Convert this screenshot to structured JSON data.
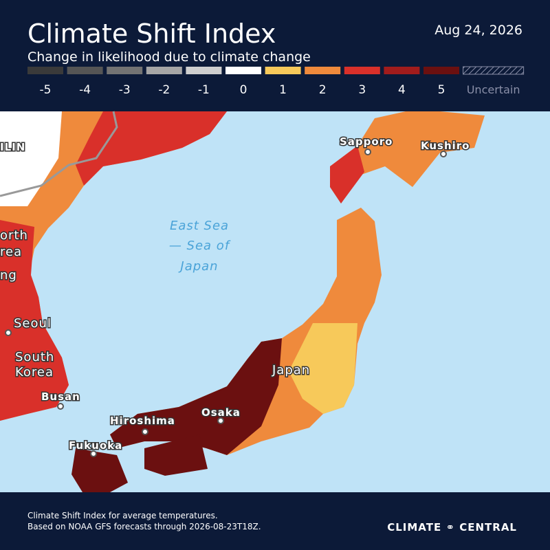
{
  "header": {
    "title": "Climate Shift Index",
    "subtitle": "Change in likelihood due to climate change",
    "date": "Aug 24, 2026"
  },
  "legend": [
    {
      "label": "-5",
      "color": "#3a3a3a"
    },
    {
      "label": "-4",
      "color": "#555555"
    },
    {
      "label": "-3",
      "color": "#737373"
    },
    {
      "label": "-2",
      "color": "#a6a6a6"
    },
    {
      "label": "-1",
      "color": "#cfcfcf"
    },
    {
      "label": "0",
      "color": "#ffffff"
    },
    {
      "label": "1",
      "color": "#f7c95a"
    },
    {
      "label": "2",
      "color": "#ef8a3c"
    },
    {
      "label": "3",
      "color": "#d9302a"
    },
    {
      "label": "4",
      "color": "#a11c1c"
    },
    {
      "label": "5",
      "color": "#6b1010"
    },
    {
      "label": "Uncertain",
      "color": "#8a8fa8"
    }
  ],
  "map": {
    "sea_label": [
      "East Sea",
      "— Sea of",
      "Japan"
    ],
    "places": [
      "ILIN",
      "orth",
      "rea",
      "ng",
      "Seoul",
      "South",
      "Korea",
      "Busan",
      "Fukuoka",
      "Hiroshima",
      "Osaka",
      "Japan",
      "Sapporo",
      "Kushiro"
    ]
  },
  "footer": {
    "note_line1": "Climate Shift Index for average temperatures.",
    "note_line2": "Based on NOAA GFS forecasts through 2026-08-23T18Z.",
    "brand": "CLIMATE ⚭ CENTRAL"
  }
}
